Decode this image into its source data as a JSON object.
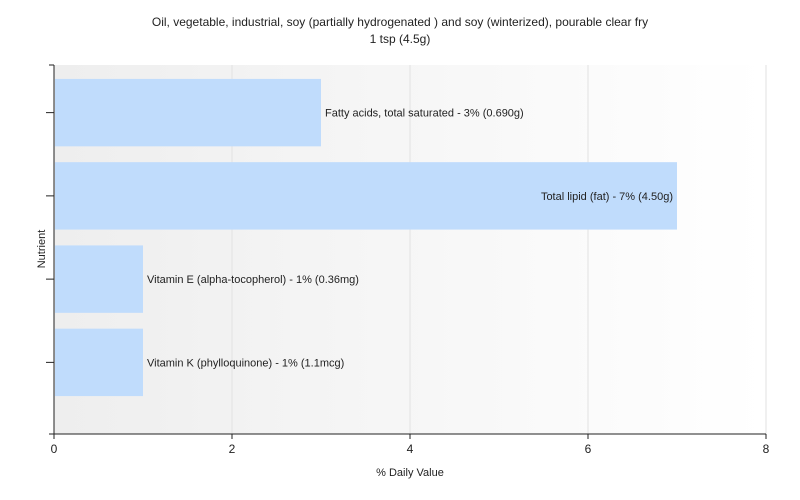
{
  "chart_data": {
    "type": "bar",
    "orientation": "horizontal",
    "title": "Oil, vegetable, industrial, soy (partially hydrogenated ) and soy (winterized), pourable clear fry",
    "subtitle": "1 tsp (4.5g)",
    "xlabel": "% Daily Value",
    "ylabel": "Nutrient",
    "xlim": [
      0,
      8
    ],
    "xticks": [
      0,
      2,
      4,
      6,
      8
    ],
    "grid": true,
    "bar_color": "#c0dcfc",
    "categories": [
      "Fatty acids, total saturated",
      "Total lipid (fat)",
      "Vitamin E (alpha-tocopherol)",
      "Vitamin K (phylloquinone)"
    ],
    "values": [
      3,
      7,
      1,
      1
    ],
    "labels": [
      "Fatty acids, total saturated - 3% (0.690g)",
      "Total lipid (fat) - 7% (4.50g)",
      "Vitamin E (alpha-tocopherol) - 1% (0.36mg)",
      "Vitamin K (phylloquinone) - 1% (1.1mcg)"
    ]
  }
}
